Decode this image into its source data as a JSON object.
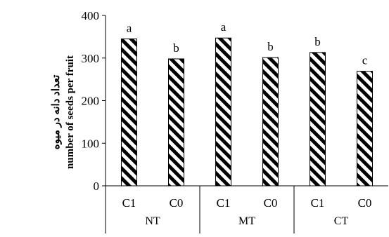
{
  "chart_data": {
    "type": "bar",
    "groups": [
      "NT",
      "MT",
      "CT"
    ],
    "categories": [
      "C1",
      "C0",
      "C1",
      "C0",
      "C1",
      "C0"
    ],
    "values": [
      345,
      298,
      347,
      301,
      313,
      269
    ],
    "significance": [
      "a",
      "b",
      "a",
      "b",
      "b",
      "c"
    ],
    "ylabel_lines": [
      "تعداد دانه در میوه",
      "number of seeds per fruit"
    ],
    "ylim": [
      0,
      400
    ],
    "yticks": [
      0,
      100,
      200,
      300,
      400
    ],
    "bar_pattern": "diagonal-hatch",
    "grid": false
  }
}
